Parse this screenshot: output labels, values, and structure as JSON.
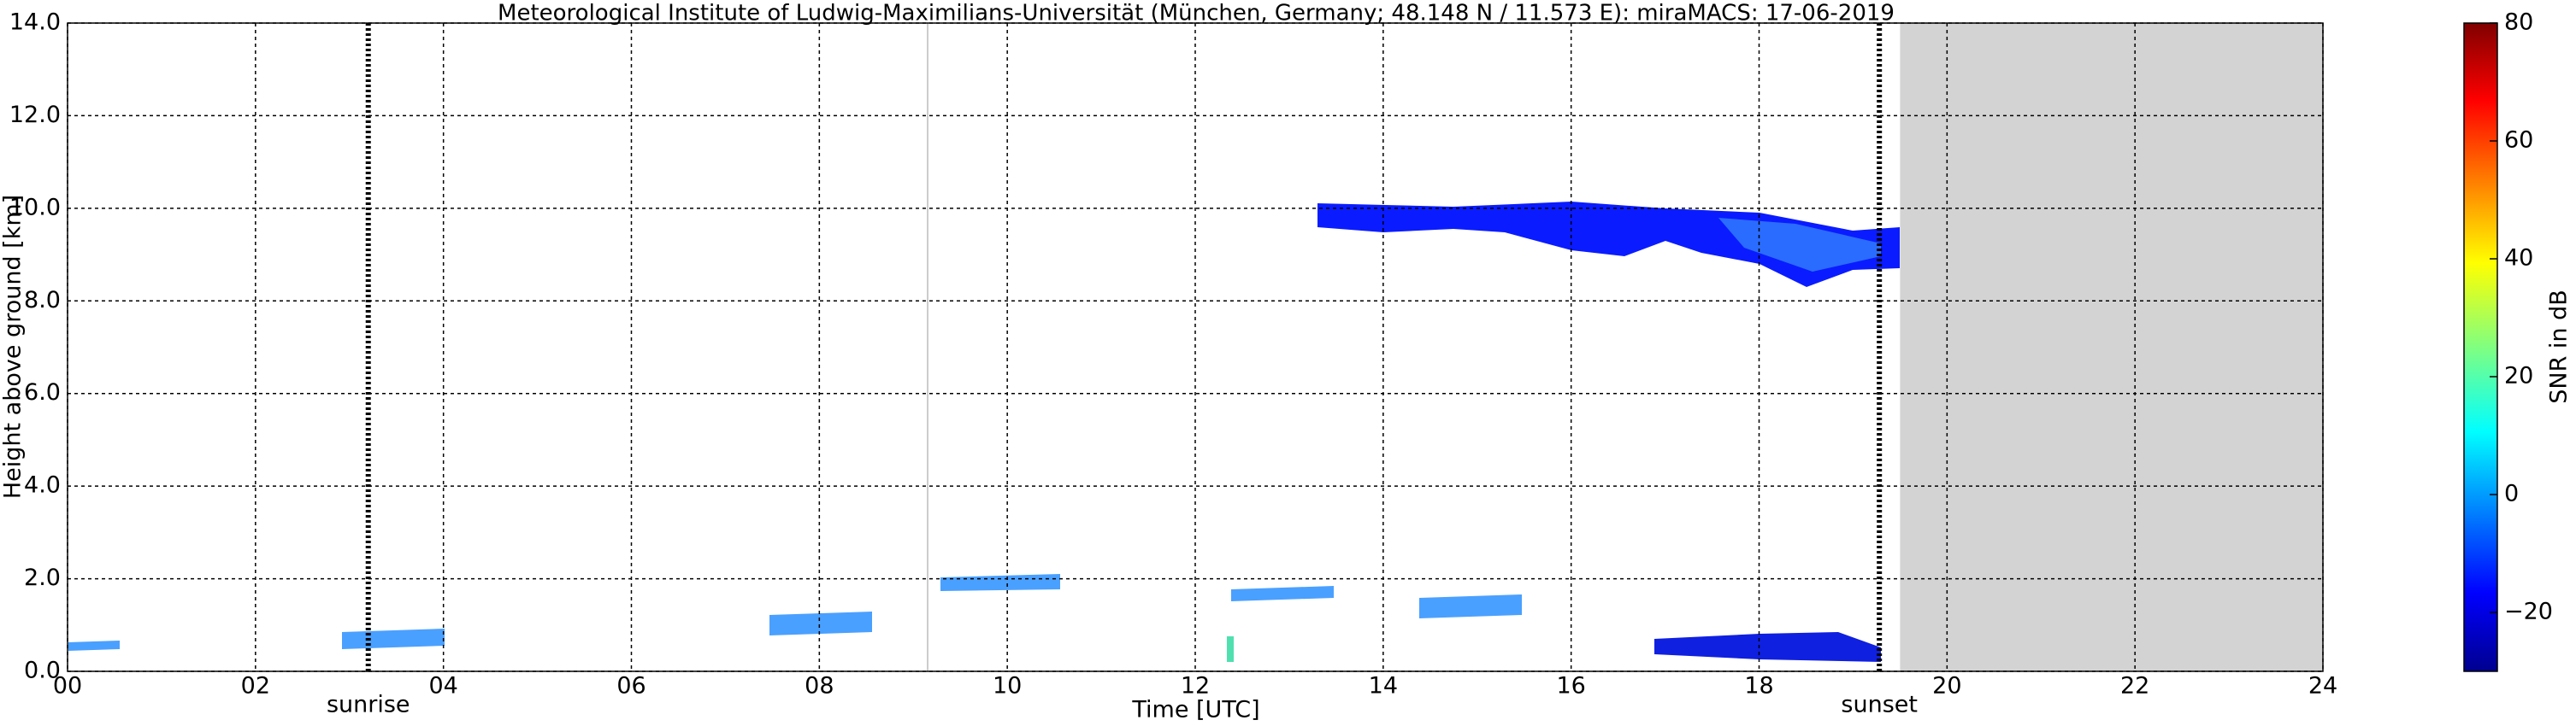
{
  "chart_data": {
    "type": "heatmap",
    "title": "Meteorological Institute of Ludwig-Maximilians-Universität (München, Germany; 48.148 N / 11.573 E):    miraMACS: 17-06-2019",
    "xlabel": "Time [UTC]",
    "ylabel": "Height above ground [km]",
    "xlim": [
      0,
      24
    ],
    "xticks": [
      {
        "value": 0,
        "label": "00"
      },
      {
        "value": 2,
        "label": "02"
      },
      {
        "value": 4,
        "label": "04"
      },
      {
        "value": 6,
        "label": "06"
      },
      {
        "value": 8,
        "label": "08"
      },
      {
        "value": 10,
        "label": "10"
      },
      {
        "value": 12,
        "label": "12"
      },
      {
        "value": 14,
        "label": "14"
      },
      {
        "value": 16,
        "label": "16"
      },
      {
        "value": 18,
        "label": "18"
      },
      {
        "value": 20,
        "label": "20"
      },
      {
        "value": 22,
        "label": "22"
      },
      {
        "value": 24,
        "label": "24"
      }
    ],
    "ylim": [
      0,
      14
    ],
    "yticks": [
      {
        "value": 0,
        "label": "0.0"
      },
      {
        "value": 2,
        "label": "2.0"
      },
      {
        "value": 4,
        "label": "4.0"
      },
      {
        "value": 6,
        "label": "6.0"
      },
      {
        "value": 8,
        "label": "8.0"
      },
      {
        "value": 10,
        "label": "10.0"
      },
      {
        "value": 12,
        "label": "12.0"
      },
      {
        "value": 14,
        "label": "14.0"
      }
    ],
    "grid": true,
    "annotations": [
      {
        "label": "sunrise",
        "x": 3.2
      },
      {
        "label": "sunset",
        "x": 19.28
      }
    ],
    "no_data_span": [
      19.5,
      24
    ],
    "colorbar": {
      "label": "SNR in dB",
      "clim": [
        -30,
        80
      ],
      "ticks": [
        {
          "value": -20,
          "label": "−20"
        },
        0,
        20,
        40,
        60,
        80
      ]
    }
  }
}
